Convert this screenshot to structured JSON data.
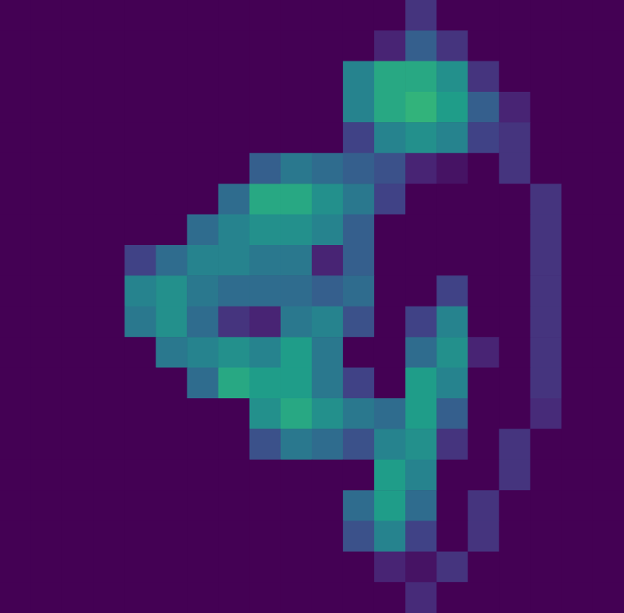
{
  "chart_data": {
    "type": "heatmap",
    "tick_labels": false,
    "grid": false,
    "zlim": [
      0,
      1
    ],
    "cells": [
      [
        0,
        0,
        0,
        0,
        0,
        0,
        0,
        0,
        0,
        0,
        0,
        0,
        0,
        0.15,
        0,
        0,
        0,
        0,
        0,
        0
      ],
      [
        0,
        0,
        0,
        0,
        0,
        0,
        0,
        0,
        0,
        0,
        0,
        0,
        0.1,
        0.3,
        0.15,
        0,
        0,
        0,
        0,
        0
      ],
      [
        0,
        0,
        0,
        0,
        0,
        0,
        0,
        0,
        0,
        0,
        0,
        0.45,
        0.6,
        0.6,
        0.5,
        0.15,
        0,
        0,
        0,
        0
      ],
      [
        0,
        0,
        0,
        0,
        0,
        0,
        0,
        0,
        0,
        0,
        0,
        0.45,
        0.6,
        0.65,
        0.55,
        0.3,
        0.1,
        0,
        0,
        0
      ],
      [
        0,
        0,
        0,
        0,
        0,
        0,
        0,
        0,
        0,
        0,
        0,
        0.2,
        0.45,
        0.5,
        0.45,
        0.2,
        0.15,
        0,
        0,
        0
      ],
      [
        0,
        0,
        0,
        0,
        0,
        0,
        0,
        0,
        0.3,
        0.4,
        0.35,
        0.3,
        0.25,
        0.1,
        0.05,
        0,
        0.15,
        0,
        0,
        0
      ],
      [
        0,
        0,
        0,
        0,
        0,
        0,
        0,
        0.35,
        0.6,
        0.6,
        0.5,
        0.4,
        0.2,
        0,
        0,
        0,
        0,
        0.15,
        0,
        0
      ],
      [
        0,
        0,
        0,
        0,
        0,
        0,
        0.35,
        0.45,
        0.5,
        0.5,
        0.45,
        0.3,
        0,
        0,
        0,
        0,
        0,
        0.15,
        0,
        0
      ],
      [
        0,
        0,
        0,
        0,
        0.2,
        0.35,
        0.45,
        0.45,
        0.4,
        0.4,
        0.1,
        0.3,
        0,
        0,
        0,
        0,
        0,
        0.15,
        0,
        0
      ],
      [
        0,
        0,
        0,
        0,
        0.45,
        0.5,
        0.4,
        0.35,
        0.35,
        0.35,
        0.3,
        0.35,
        0,
        0,
        0.2,
        0,
        0,
        0.15,
        0,
        0
      ],
      [
        0,
        0,
        0,
        0,
        0.4,
        0.5,
        0.35,
        0.15,
        0.1,
        0.4,
        0.45,
        0.25,
        0,
        0.2,
        0.45,
        0,
        0,
        0.15,
        0,
        0
      ],
      [
        0,
        0,
        0,
        0,
        0,
        0.4,
        0.45,
        0.5,
        0.45,
        0.55,
        0.4,
        0,
        0,
        0.35,
        0.5,
        0.1,
        0,
        0.15,
        0,
        0
      ],
      [
        0,
        0,
        0,
        0,
        0,
        0,
        0.35,
        0.6,
        0.55,
        0.55,
        0.4,
        0.2,
        0,
        0.55,
        0.45,
        0,
        0,
        0.15,
        0,
        0
      ],
      [
        0,
        0,
        0,
        0,
        0,
        0,
        0,
        0,
        0.5,
        0.6,
        0.5,
        0.4,
        0.35,
        0.55,
        0.3,
        0,
        0,
        0.12,
        0,
        0
      ],
      [
        0,
        0,
        0,
        0,
        0,
        0,
        0,
        0,
        0.25,
        0.4,
        0.35,
        0.25,
        0.45,
        0.5,
        0.15,
        0,
        0.15,
        0,
        0,
        0
      ],
      [
        0,
        0,
        0,
        0,
        0,
        0,
        0,
        0,
        0,
        0,
        0,
        0,
        0.55,
        0.45,
        0,
        0,
        0.15,
        0,
        0,
        0
      ],
      [
        0,
        0,
        0,
        0,
        0,
        0,
        0,
        0,
        0,
        0,
        0,
        0.35,
        0.55,
        0.35,
        0,
        0.15,
        0,
        0,
        0,
        0
      ],
      [
        0,
        0,
        0,
        0,
        0,
        0,
        0,
        0,
        0,
        0,
        0,
        0.25,
        0.45,
        0.2,
        0,
        0.15,
        0,
        0,
        0,
        0
      ],
      [
        0,
        0,
        0,
        0,
        0,
        0,
        0,
        0,
        0,
        0,
        0,
        0,
        0.1,
        0.05,
        0.15,
        0,
        0,
        0,
        0,
        0
      ],
      [
        0,
        0,
        0,
        0,
        0,
        0,
        0,
        0,
        0,
        0,
        0,
        0,
        0,
        0.12,
        0,
        0,
        0,
        0,
        0,
        0
      ]
    ]
  }
}
